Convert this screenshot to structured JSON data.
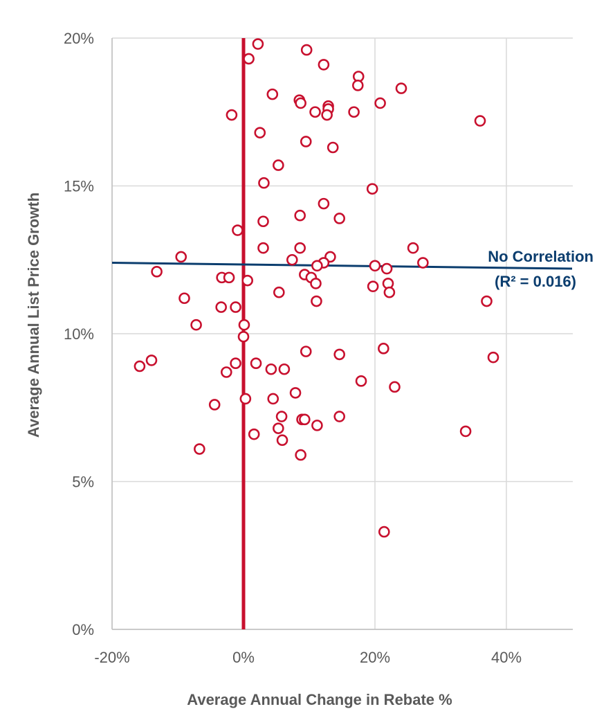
{
  "chart_data": {
    "type": "scatter",
    "title": "",
    "xlabel": "Average Annual Change in Rebate %",
    "ylabel": "Average Annual List Price Growth",
    "xlim": [
      -20,
      50
    ],
    "ylim": [
      0,
      20
    ],
    "x_ticks": [
      -20,
      0,
      20,
      40
    ],
    "x_tick_labels": [
      "-20%",
      "0%",
      "20%",
      "40%"
    ],
    "y_ticks": [
      0,
      5,
      10,
      15,
      20
    ],
    "y_tick_labels": [
      "0%",
      "5%",
      "10%",
      "15%",
      "20%"
    ],
    "grid": true,
    "legend": "none",
    "colors": {
      "points": "#c8102e",
      "zero_line": "#c8102e",
      "trendline": "#0b3d6e",
      "grid": "#d9d9d9",
      "text": "#595959"
    },
    "points": [
      {
        "x": 2.2,
        "y": 19.8
      },
      {
        "x": 9.6,
        "y": 19.6
      },
      {
        "x": 0.8,
        "y": 19.3
      },
      {
        "x": 12.2,
        "y": 19.1
      },
      {
        "x": 17.5,
        "y": 18.7
      },
      {
        "x": 17.4,
        "y": 18.4
      },
      {
        "x": 24.0,
        "y": 18.3
      },
      {
        "x": 4.4,
        "y": 18.1
      },
      {
        "x": 8.5,
        "y": 17.9
      },
      {
        "x": 8.7,
        "y": 17.8
      },
      {
        "x": 20.8,
        "y": 17.8
      },
      {
        "x": 12.9,
        "y": 17.7
      },
      {
        "x": 12.9,
        "y": 17.6
      },
      {
        "x": 10.9,
        "y": 17.5
      },
      {
        "x": 16.8,
        "y": 17.5
      },
      {
        "x": 12.7,
        "y": 17.4
      },
      {
        "x": -1.8,
        "y": 17.4
      },
      {
        "x": 36.0,
        "y": 17.2
      },
      {
        "x": 2.5,
        "y": 16.8
      },
      {
        "x": 9.5,
        "y": 16.5
      },
      {
        "x": 13.6,
        "y": 16.3
      },
      {
        "x": 5.3,
        "y": 15.7
      },
      {
        "x": 3.1,
        "y": 15.1
      },
      {
        "x": 19.6,
        "y": 14.9
      },
      {
        "x": 12.2,
        "y": 14.4
      },
      {
        "x": 8.6,
        "y": 14.0
      },
      {
        "x": 14.6,
        "y": 13.9
      },
      {
        "x": 3.0,
        "y": 13.8
      },
      {
        "x": -0.9,
        "y": 13.5
      },
      {
        "x": 8.6,
        "y": 12.9
      },
      {
        "x": 3.0,
        "y": 12.9
      },
      {
        "x": 25.8,
        "y": 12.9
      },
      {
        "x": 13.2,
        "y": 12.6
      },
      {
        "x": -9.5,
        "y": 12.6
      },
      {
        "x": 7.4,
        "y": 12.5
      },
      {
        "x": 12.2,
        "y": 12.4
      },
      {
        "x": 11.2,
        "y": 12.3
      },
      {
        "x": 20.0,
        "y": 12.3
      },
      {
        "x": 21.8,
        "y": 12.2
      },
      {
        "x": 27.3,
        "y": 12.4
      },
      {
        "x": -13.2,
        "y": 12.1
      },
      {
        "x": -3.3,
        "y": 11.9
      },
      {
        "x": -2.2,
        "y": 11.9
      },
      {
        "x": 9.3,
        "y": 12.0
      },
      {
        "x": 10.3,
        "y": 11.9
      },
      {
        "x": 0.6,
        "y": 11.8
      },
      {
        "x": 11.0,
        "y": 11.7
      },
      {
        "x": 22.0,
        "y": 11.7
      },
      {
        "x": 19.7,
        "y": 11.6
      },
      {
        "x": 22.2,
        "y": 11.4
      },
      {
        "x": 5.4,
        "y": 11.4
      },
      {
        "x": -9.0,
        "y": 11.2
      },
      {
        "x": 11.1,
        "y": 11.1
      },
      {
        "x": 37.0,
        "y": 11.1
      },
      {
        "x": -3.4,
        "y": 10.9
      },
      {
        "x": -1.2,
        "y": 10.9
      },
      {
        "x": 0.1,
        "y": 10.3
      },
      {
        "x": -7.2,
        "y": 10.3
      },
      {
        "x": 0.0,
        "y": 9.9
      },
      {
        "x": 21.3,
        "y": 9.5
      },
      {
        "x": 9.5,
        "y": 9.4
      },
      {
        "x": 14.6,
        "y": 9.3
      },
      {
        "x": 38.0,
        "y": 9.2
      },
      {
        "x": -14.0,
        "y": 9.1
      },
      {
        "x": -1.2,
        "y": 9.0
      },
      {
        "x": 1.9,
        "y": 9.0
      },
      {
        "x": -15.8,
        "y": 8.9
      },
      {
        "x": 4.2,
        "y": 8.8
      },
      {
        "x": 6.2,
        "y": 8.8
      },
      {
        "x": -2.6,
        "y": 8.7
      },
      {
        "x": 17.9,
        "y": 8.4
      },
      {
        "x": 23.0,
        "y": 8.2
      },
      {
        "x": 7.9,
        "y": 8.0
      },
      {
        "x": 0.3,
        "y": 7.8
      },
      {
        "x": 4.5,
        "y": 7.8
      },
      {
        "x": -4.4,
        "y": 7.6
      },
      {
        "x": 5.8,
        "y": 7.2
      },
      {
        "x": 14.6,
        "y": 7.2
      },
      {
        "x": 8.9,
        "y": 7.1
      },
      {
        "x": 9.3,
        "y": 7.1
      },
      {
        "x": 11.2,
        "y": 6.9
      },
      {
        "x": 5.3,
        "y": 6.8
      },
      {
        "x": 33.8,
        "y": 6.7
      },
      {
        "x": 1.6,
        "y": 6.6
      },
      {
        "x": 5.9,
        "y": 6.4
      },
      {
        "x": -6.7,
        "y": 6.1
      },
      {
        "x": 8.7,
        "y": 5.9
      },
      {
        "x": 21.4,
        "y": 3.3
      }
    ],
    "zero_line": {
      "x": 0
    },
    "trendline": {
      "x": [
        -20,
        50
      ],
      "y": [
        12.4,
        12.2
      ]
    },
    "annotation": {
      "line1": "No Correlation",
      "line2": "(R² = 0.016)"
    }
  }
}
